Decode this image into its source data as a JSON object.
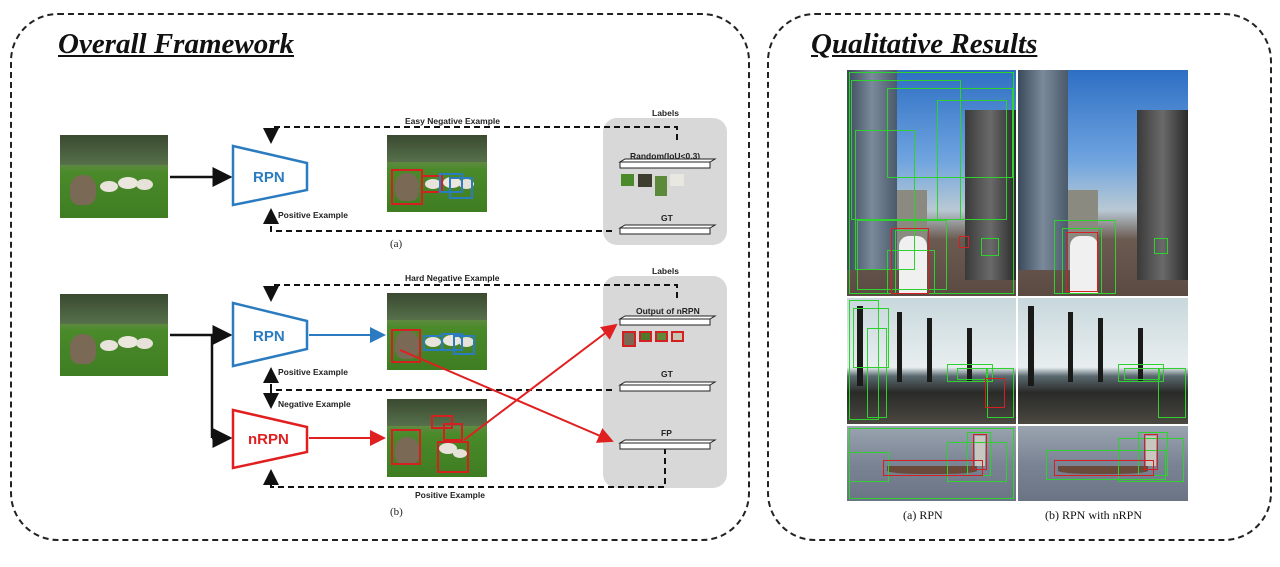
{
  "panels": {
    "left_title": "Overall Framework",
    "right_title": "Qualitative Results"
  },
  "diagram_a": {
    "network": "RPN",
    "top_arrow": "Easy Negative Example",
    "bottom_arrow": "Positive Example",
    "labels_title": "Labels",
    "label_random": "Random(IoU<0.3)",
    "label_gt": "GT",
    "caption": "(a)"
  },
  "diagram_b": {
    "network_rpn": "RPN",
    "network_nrpn": "nRPN",
    "top_arrow": "Hard Negative Example",
    "rpn_positive": "Positive Example",
    "negative": "Negative Example",
    "nrpn_positive": "Positive Example",
    "labels_title": "Labels",
    "label_output": "Output of nRPN",
    "label_gt": "GT",
    "label_fp": "FP",
    "caption": "(b)"
  },
  "results": {
    "caption_left": "(a) RPN",
    "caption_right": "(b) RPN with nRPN"
  },
  "colors": {
    "rpn_blue": "#2a7bc0",
    "nrpn_red": "#e02020",
    "labels_panel": "#d8d8d8",
    "detection_green": "#2fd12f",
    "detection_red": "#d42020"
  }
}
